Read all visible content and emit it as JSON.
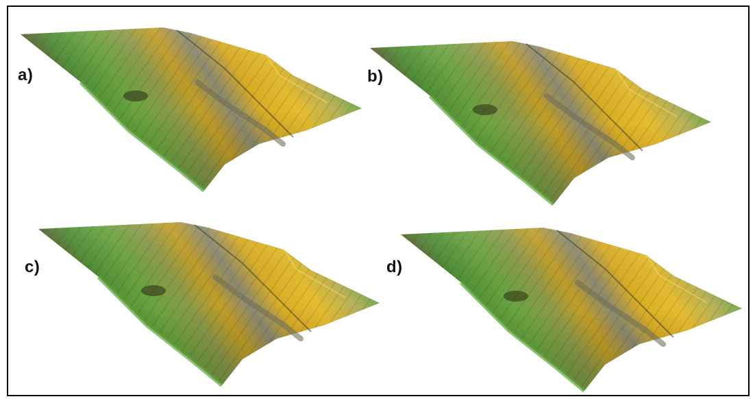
{
  "panels": [
    {
      "label": "a)"
    },
    {
      "label": "b)"
    },
    {
      "label": "c)"
    },
    {
      "label": "d)"
    }
  ],
  "colors": {
    "border": "#000000",
    "dark_olive": "#4a4527",
    "grass_green": "#5f9a3a",
    "bright_green": "#74b443",
    "ochre": "#c9a420",
    "gold": "#e3b92b",
    "gray_rock": "#8e8f78",
    "pale_green": "#a9c88a"
  }
}
